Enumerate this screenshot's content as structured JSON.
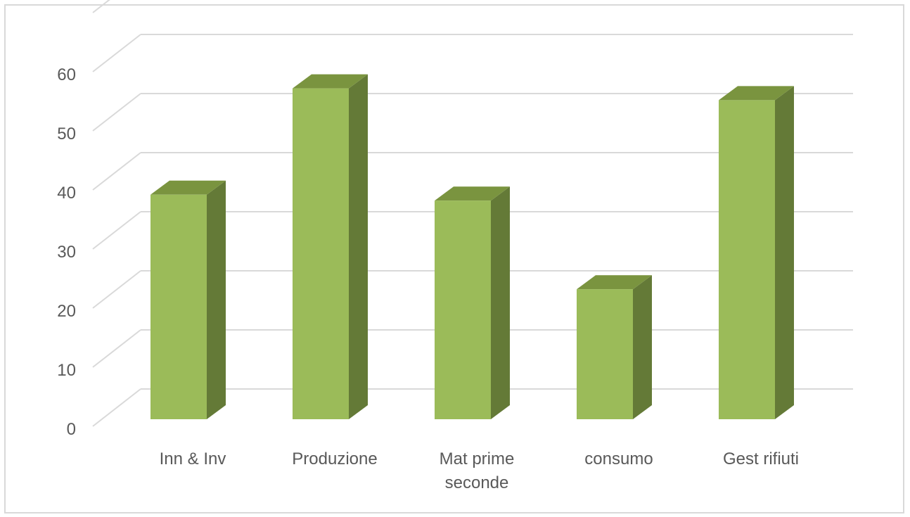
{
  "chart_data": {
    "type": "bar",
    "style": "3d-column",
    "categories": [
      "Inn & Inv",
      "Produzione",
      "Mat prime seconde",
      "consumo",
      "Gest rifiuti"
    ],
    "category_label_lines": [
      [
        "Inn & Inv"
      ],
      [
        "Produzione"
      ],
      [
        "Mat prime",
        "seconde"
      ],
      [
        "consumo"
      ],
      [
        "Gest rifiuti"
      ]
    ],
    "values": [
      38,
      56,
      37,
      22,
      54
    ],
    "yticks": [
      "0",
      "10",
      "20",
      "30",
      "40",
      "50",
      "60"
    ],
    "ylim": [
      0,
      60
    ],
    "grid": true,
    "legend": "none",
    "colors": {
      "front": "#9bbb59",
      "side": "#647a37",
      "top": "#7a943f",
      "grid": "#d9d9d9",
      "text": "#595959"
    }
  }
}
